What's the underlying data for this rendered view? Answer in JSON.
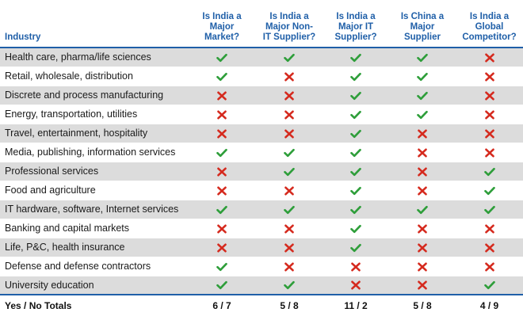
{
  "header": {
    "industry": "Industry",
    "cols": [
      "Is India a\nMajor\nMarket?",
      "Is India a\nMajor Non-\nIT Supplier?",
      "Is India a\nMajor IT\nSupplier?",
      "Is China a\nMajor\nSupplier",
      "Is India a\nGlobal\nCompetitor?"
    ]
  },
  "colors": {
    "accent": "#1f5fa8",
    "yes": "#2e9e3a",
    "no": "#d52a1e",
    "shade": "#dcdcdc"
  },
  "icons": {
    "yes": "check-icon",
    "no": "cross-icon"
  },
  "rows": [
    {
      "name": "Health care, pharma/life sciences",
      "marks": [
        "yes",
        "yes",
        "yes",
        "yes",
        "no"
      ]
    },
    {
      "name": "Retail, wholesale, distribution",
      "marks": [
        "yes",
        "no",
        "yes",
        "yes",
        "no"
      ]
    },
    {
      "name": "Discrete and process manufacturing",
      "marks": [
        "no",
        "no",
        "yes",
        "yes",
        "no"
      ]
    },
    {
      "name": "Energy, transportation, utilities",
      "marks": [
        "no",
        "no",
        "yes",
        "yes",
        "no"
      ]
    },
    {
      "name": "Travel, entertainment, hospitality",
      "marks": [
        "no",
        "no",
        "yes",
        "no",
        "no"
      ]
    },
    {
      "name": "Media, publishing, information services",
      "marks": [
        "yes",
        "yes",
        "yes",
        "no",
        "no"
      ]
    },
    {
      "name": "Professional services",
      "marks": [
        "no",
        "yes",
        "yes",
        "no",
        "yes"
      ]
    },
    {
      "name": "Food and agriculture",
      "marks": [
        "no",
        "no",
        "yes",
        "no",
        "yes"
      ]
    },
    {
      "name": "IT hardware, software, Internet services",
      "marks": [
        "yes",
        "yes",
        "yes",
        "yes",
        "yes"
      ]
    },
    {
      "name": "Banking and capital markets",
      "marks": [
        "no",
        "no",
        "yes",
        "no",
        "no"
      ]
    },
    {
      "name": "Life, P&C, health insurance",
      "marks": [
        "no",
        "no",
        "yes",
        "no",
        "no"
      ]
    },
    {
      "name": "Defense and defense contractors",
      "marks": [
        "yes",
        "no",
        "no",
        "no",
        "no"
      ]
    },
    {
      "name": "University education",
      "marks": [
        "yes",
        "yes",
        "no",
        "no",
        "yes"
      ]
    }
  ],
  "totals": {
    "label": "Yes / No Totals",
    "values": [
      "6 / 7",
      "5 / 8",
      "11 / 2",
      "5 / 8",
      "4 / 9"
    ]
  }
}
